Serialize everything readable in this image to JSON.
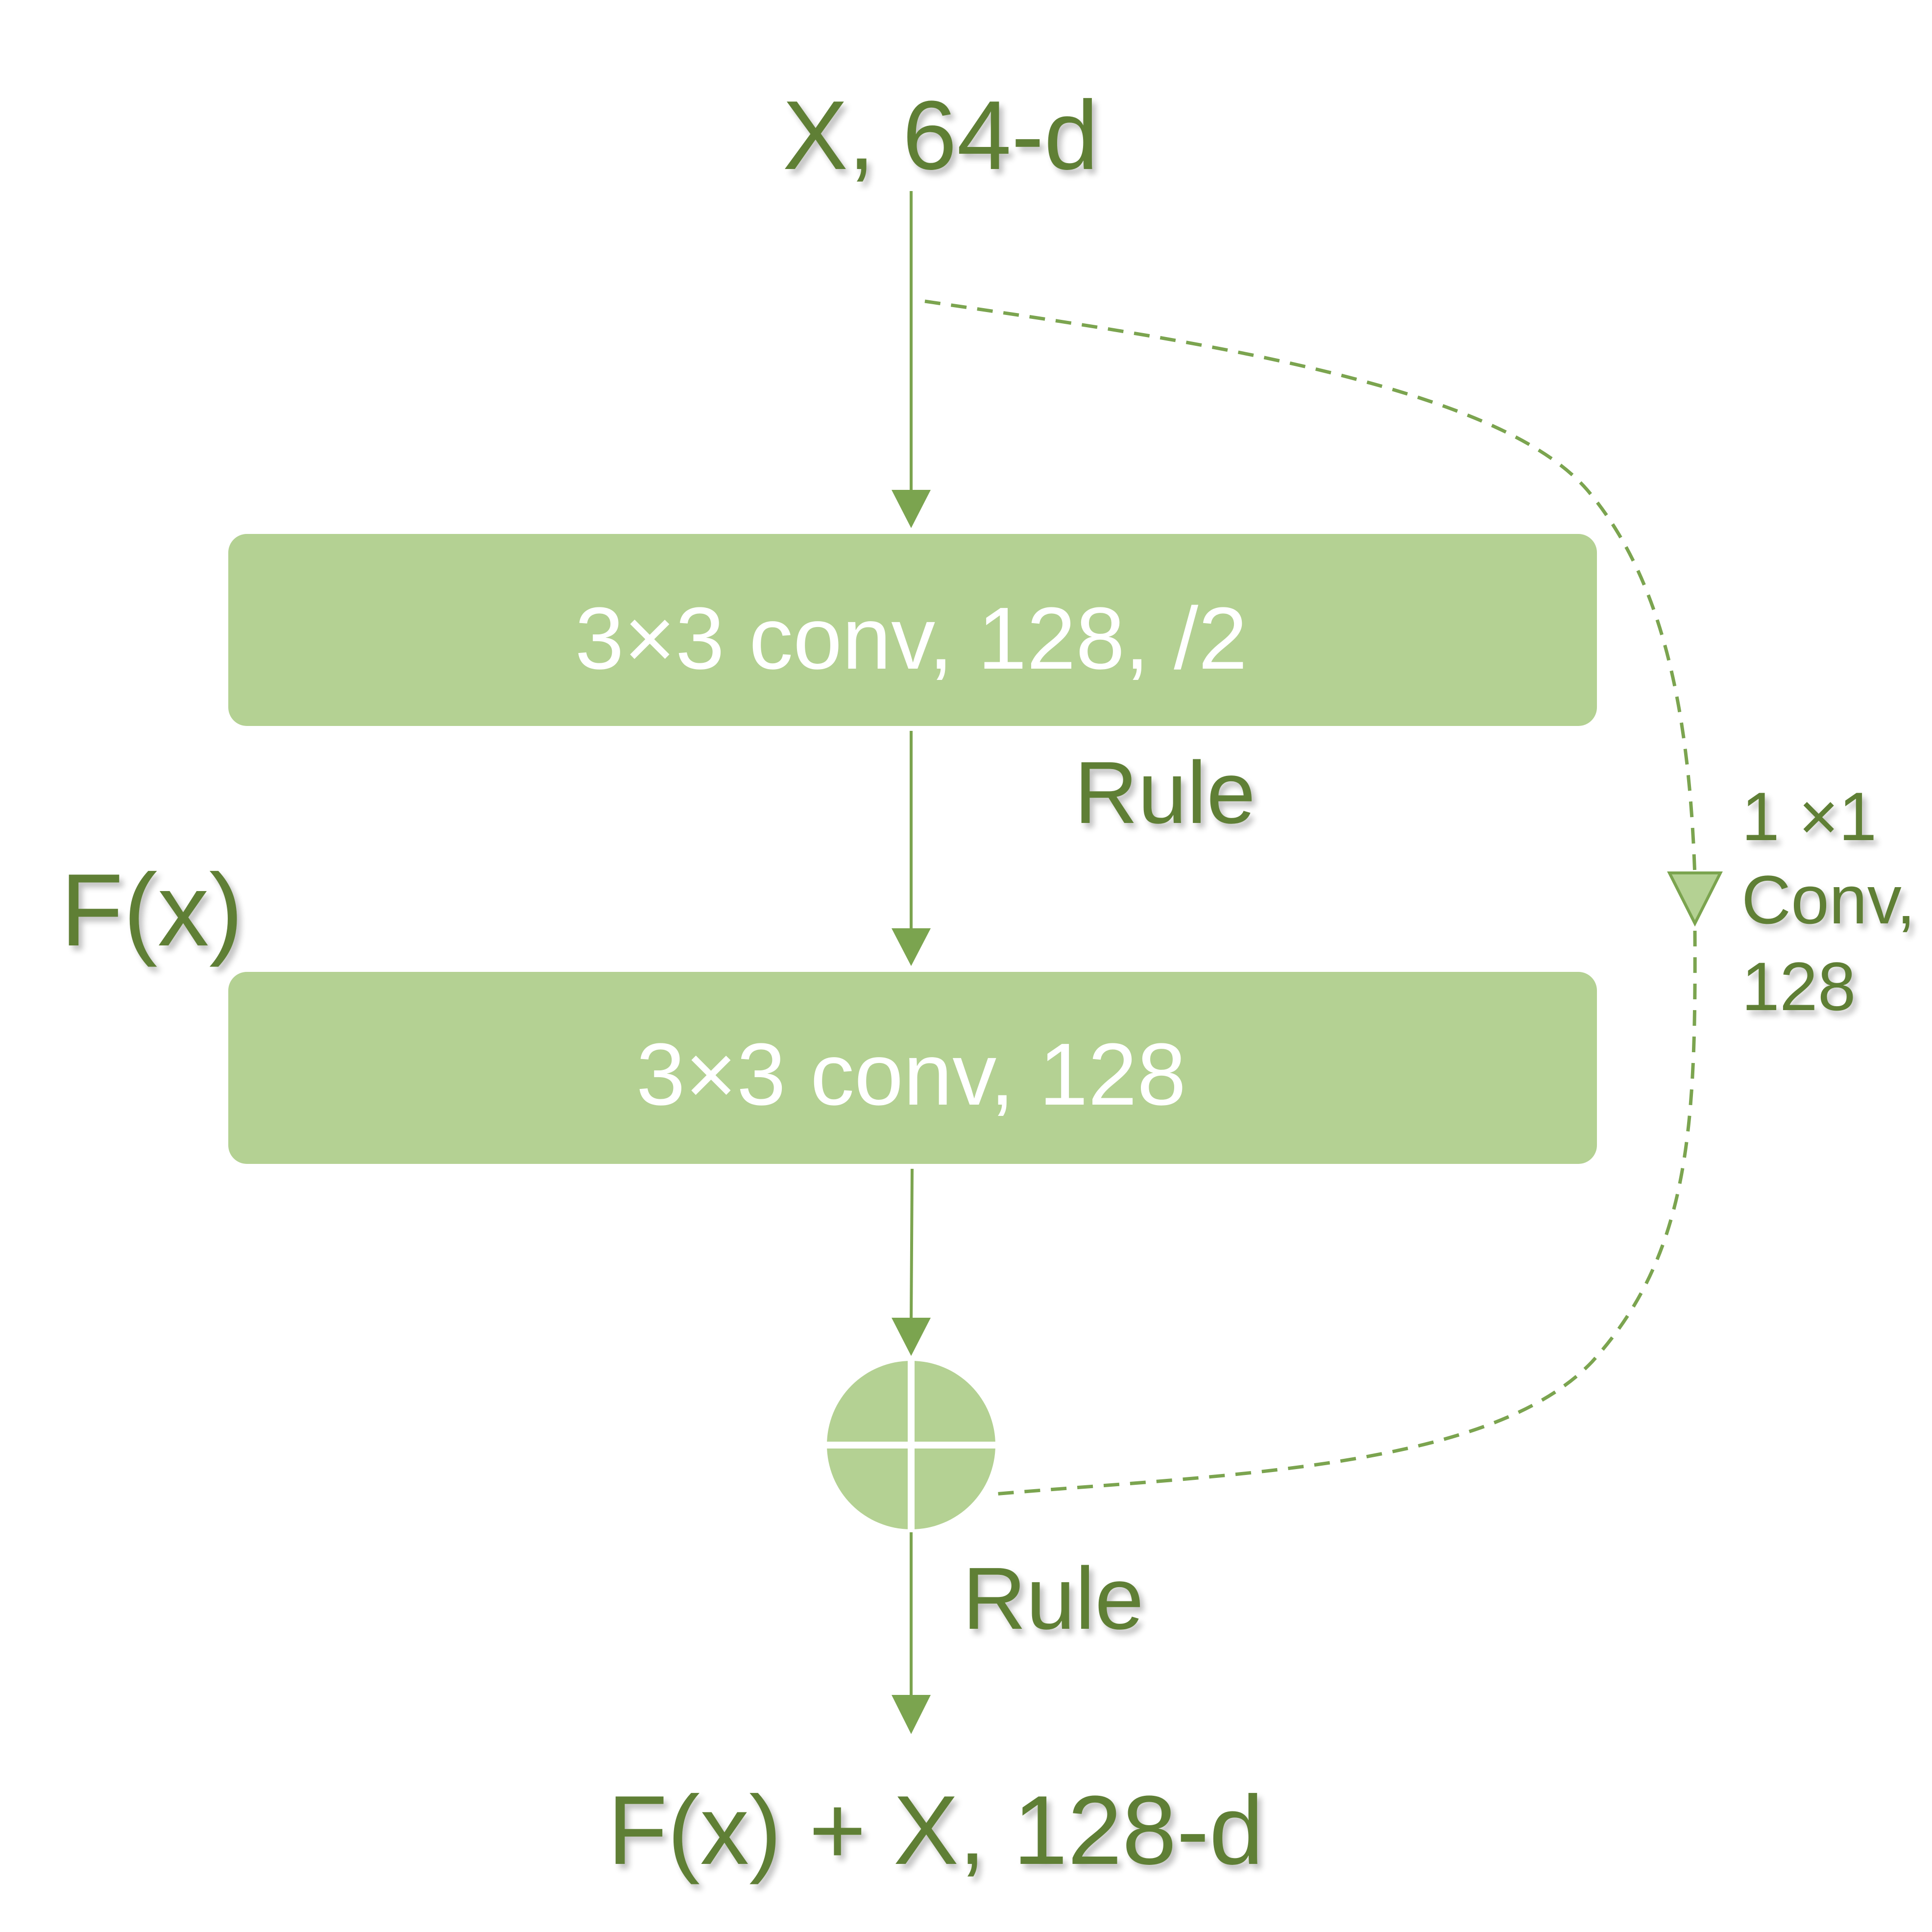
{
  "input_label": "X, 64-d",
  "output_label": "F(x) + X, 128-d",
  "block_label": "F(x)",
  "conv1_label": "3×3 conv, 128, /2",
  "conv2_label": "3×3 conv, 128",
  "relu1_label": "Rule",
  "relu2_label": "Rule",
  "shortcut_label": {
    "line1": "1 ×1",
    "line2": "Conv,",
    "line3": "128"
  },
  "colors": {
    "text": "#5f7f35",
    "arrow": "#7ba44f",
    "box_fill": "#b4d193",
    "box_text": "#ffffff",
    "dashed": "#7ba44f"
  }
}
